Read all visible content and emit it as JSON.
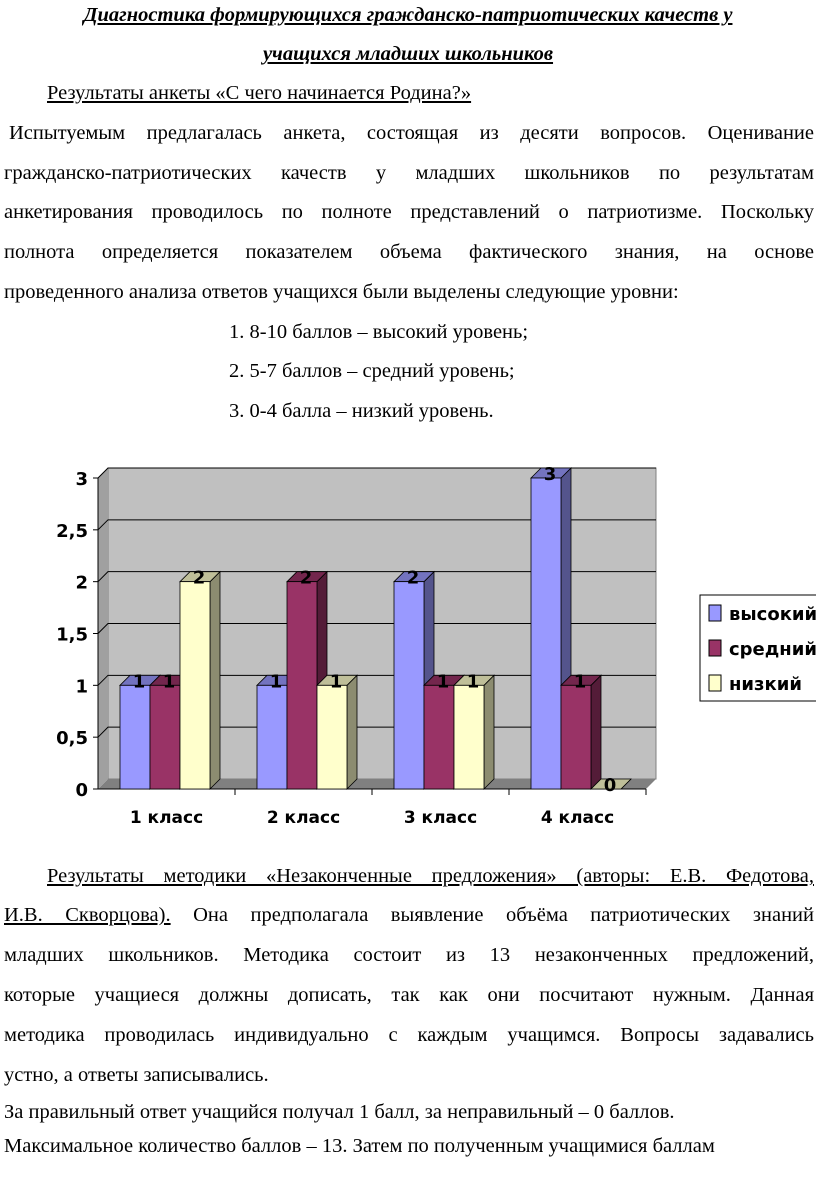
{
  "title": [
    "Диагностика формирующихся гражданско-патриотических качеств у",
    "учащихся младших школьников"
  ],
  "section1_heading": "Результаты анкеты «С чего начинается Родина?»",
  "paragraph1": [
    "Испытуемым предлагалась анкета, состоящая из десяти вопросов. Оценивание",
    "гражданско-патриотических качеств у младших школьников по результатам",
    "анкетирования проводилось по полноте представлений о патриотизме. Поскольку",
    "полнота определяется показателем объема фактического знания, на основе",
    "проведенного анализа ответов учащихся были выделены следующие уровни:"
  ],
  "levels": [
    "1. 8-10 баллов – высокий уровень;",
    "2. 5-7 баллов – средний уровень;",
    "3. 0-4 балла – низкий уровень."
  ],
  "chart_data": {
    "type": "bar",
    "categories": [
      "1 класс",
      "2 класс",
      "3 класс",
      "4 класс"
    ],
    "series": [
      {
        "name": "высокий",
        "values": [
          1,
          1,
          2,
          3
        ],
        "color": "#9999ff"
      },
      {
        "name": "средний",
        "values": [
          1,
          2,
          1,
          1
        ],
        "color": "#993366"
      },
      {
        "name": "низкий",
        "values": [
          2,
          1,
          1,
          0
        ],
        "color": "#ffffcc"
      }
    ],
    "ylim": [
      0,
      3
    ],
    "yticks": [
      "0",
      "0,5",
      "1",
      "1,5",
      "2",
      "2,5",
      "3"
    ],
    "grid": true,
    "legend": "right",
    "title": "",
    "xlabel": "",
    "ylabel": ""
  },
  "paragraph2": {
    "line1": "Результаты методики «Незаконченные предложения» (авторы: Е.В. Федотова,",
    "line2_underlined": "И.В. Скворцова).",
    "line2_rest": " Она предполагала выявление объёма патриотических знаний",
    "lines": [
      "младших школьников. Методика состоит из 13 незаконченных предложений,",
      "которые учащиеся должны дописать, так как они посчитают нужным. Данная",
      "методика проводилась индивидуально с каждым учащимся. Вопросы задавались",
      "устно, а ответы записывались."
    ]
  },
  "paragraph3": [
    "За правильный ответ учащийся получал 1 балл, за неправильный – 0 баллов.",
    "Максимальное количество баллов – 13. Затем по полученным учащимися баллам"
  ]
}
